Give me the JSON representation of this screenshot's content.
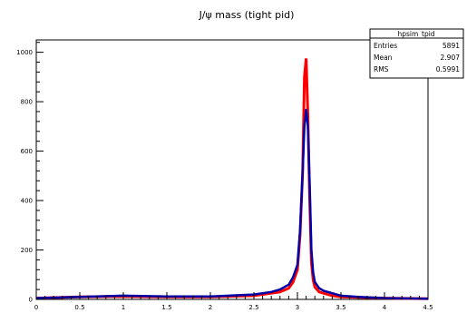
{
  "chart_data": {
    "type": "line",
    "title": "J/ψ mass (tight pid)",
    "xlabel": "",
    "ylabel": "",
    "xlim": [
      0,
      4.5
    ],
    "ylim": [
      0,
      1050
    ],
    "x_ticks": [
      0,
      0.5,
      1,
      1.5,
      2,
      2.5,
      3,
      3.5,
      4,
      4.5
    ],
    "x_tick_labels": [
      "0",
      "0.5",
      "1",
      "1.5",
      "2",
      "2.5",
      "3",
      "3.5",
      "4",
      "4.5"
    ],
    "y_ticks": [
      0,
      200,
      400,
      600,
      800,
      1000
    ],
    "y_tick_labels": [
      "0",
      "200",
      "400",
      "600",
      "800",
      "1000"
    ],
    "grid": false,
    "stats_box": {
      "name": "hpsim_tpid",
      "rows": [
        {
          "label": "Entries",
          "value": "5891"
        },
        {
          "label": "Mean",
          "value": "2.907"
        },
        {
          "label": "RMS",
          "value": "0.5991"
        }
      ]
    },
    "series": [
      {
        "color": "#ff0000",
        "x": [
          0.0,
          0.5,
          1.0,
          1.5,
          2.0,
          2.5,
          2.7,
          2.8,
          2.9,
          2.95,
          3.0,
          3.03,
          3.06,
          3.08,
          3.1,
          3.12,
          3.14,
          3.16,
          3.18,
          3.2,
          3.25,
          3.3,
          3.4,
          3.5,
          3.7,
          4.0,
          4.5
        ],
        "values": [
          5,
          10,
          12,
          10,
          10,
          15,
          25,
          30,
          45,
          70,
          120,
          260,
          520,
          900,
          975,
          750,
          420,
          150,
          80,
          50,
          30,
          25,
          15,
          10,
          8,
          5,
          3
        ]
      },
      {
        "color": "#0000aa",
        "x": [
          0.0,
          0.5,
          1.0,
          1.5,
          2.0,
          2.5,
          2.7,
          2.8,
          2.9,
          2.95,
          3.0,
          3.03,
          3.06,
          3.08,
          3.1,
          3.12,
          3.14,
          3.16,
          3.18,
          3.2,
          3.25,
          3.3,
          3.4,
          3.5,
          3.7,
          4.0,
          4.5
        ],
        "values": [
          5,
          10,
          15,
          12,
          12,
          20,
          30,
          40,
          60,
          90,
          140,
          280,
          520,
          700,
          770,
          700,
          480,
          200,
          110,
          70,
          45,
          35,
          25,
          15,
          10,
          5,
          3
        ]
      }
    ]
  }
}
